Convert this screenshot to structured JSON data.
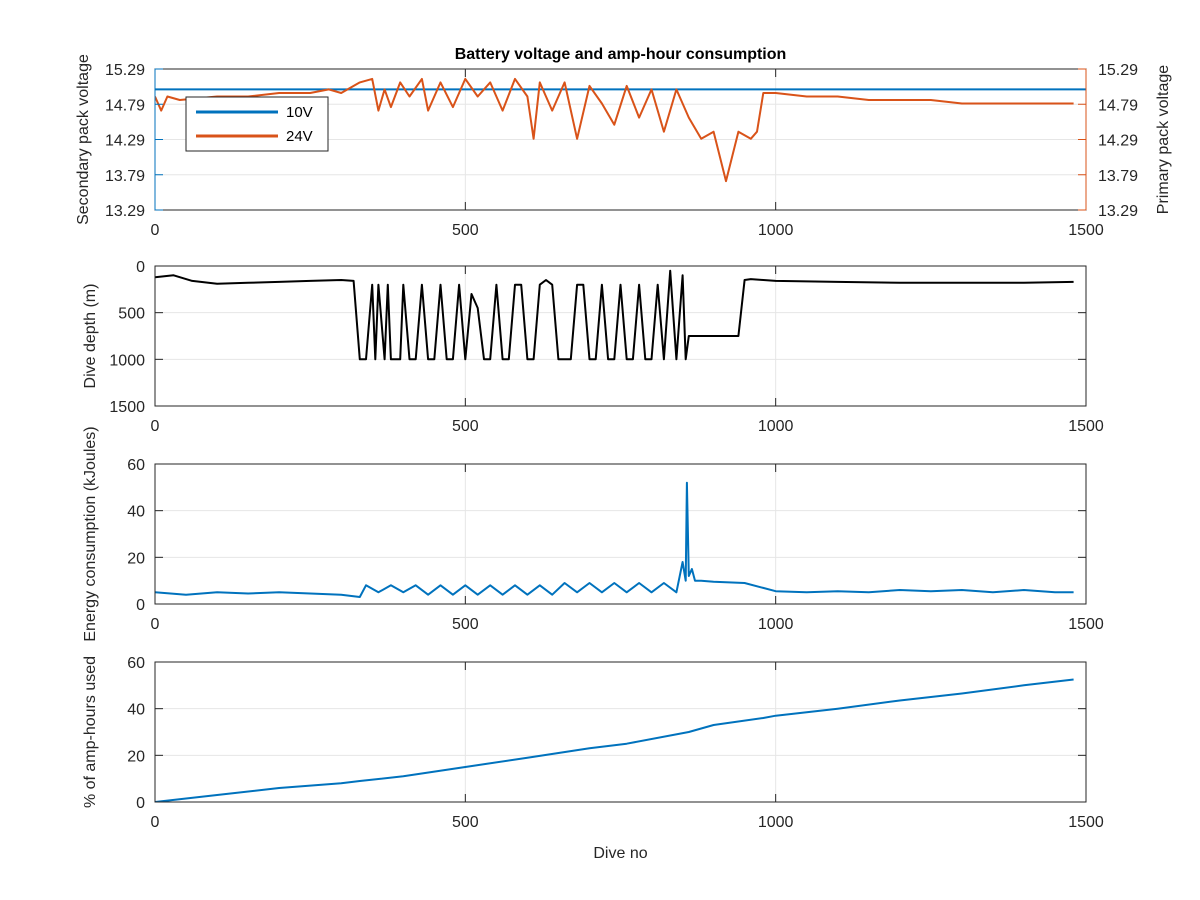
{
  "chart_data": [
    {
      "type": "line",
      "title": "Battery voltage and amp-hour consumption",
      "xlabel": "",
      "ylabel": "Secondary pack voltage",
      "ylabel_right": "Primary pack voltage",
      "xlim": [
        0,
        1500
      ],
      "ylim": [
        13.29,
        15.29
      ],
      "ylim_right": [
        13.29,
        15.29
      ],
      "xticks": [
        0,
        500,
        1000,
        1500
      ],
      "xtick_labels": [
        "0",
        "500",
        "1000",
        "1500"
      ],
      "yticks": [
        13.29,
        13.79,
        14.29,
        14.79,
        15.29
      ],
      "ytick_labels": [
        "13.29",
        "13.79",
        "14.29",
        "14.79",
        "15.29"
      ],
      "ytick_labels_right": [
        "13.29",
        "13.79",
        "14.29",
        "14.79",
        "15.29"
      ],
      "grid": true,
      "legend": "top-left",
      "left_color": "#0072bd",
      "right_color": "#d95319",
      "series": [
        {
          "name": "10V",
          "color": "#0072bd",
          "axis": "left",
          "x": [
            0,
            1500
          ],
          "y": [
            15.0,
            15.0
          ]
        },
        {
          "name": "24V",
          "color": "#d95319",
          "axis": "right",
          "x": [
            0,
            10,
            20,
            40,
            100,
            150,
            200,
            250,
            280,
            300,
            330,
            350,
            360,
            370,
            380,
            395,
            410,
            430,
            440,
            460,
            480,
            500,
            520,
            540,
            560,
            580,
            600,
            610,
            620,
            640,
            660,
            680,
            700,
            720,
            740,
            760,
            780,
            800,
            820,
            840,
            860,
            880,
            900,
            920,
            940,
            960,
            970,
            980,
            1000,
            1050,
            1100,
            1150,
            1200,
            1250,
            1300,
            1350,
            1400,
            1450,
            1480
          ],
          "y": [
            14.9,
            14.7,
            14.9,
            14.85,
            14.9,
            14.9,
            14.95,
            14.95,
            15.0,
            14.95,
            15.1,
            15.15,
            14.7,
            15.0,
            14.75,
            15.1,
            14.9,
            15.15,
            14.7,
            15.1,
            14.75,
            15.15,
            14.9,
            15.1,
            14.7,
            15.15,
            14.9,
            14.3,
            15.1,
            14.7,
            15.1,
            14.3,
            15.05,
            14.8,
            14.5,
            15.05,
            14.6,
            15.0,
            14.4,
            15.0,
            14.6,
            14.3,
            14.4,
            13.7,
            14.4,
            14.3,
            14.4,
            14.95,
            14.95,
            14.9,
            14.9,
            14.85,
            14.85,
            14.85,
            14.8,
            14.8,
            14.8,
            14.8,
            14.8
          ]
        }
      ]
    },
    {
      "type": "line",
      "xlabel": "",
      "ylabel": "Dive depth (m)",
      "xlim": [
        0,
        1500
      ],
      "ylim": [
        1500,
        0
      ],
      "y_reversed": true,
      "xticks": [
        0,
        500,
        1000,
        1500
      ],
      "xtick_labels": [
        "0",
        "500",
        "1000",
        "1500"
      ],
      "yticks": [
        0,
        500,
        1000,
        1500
      ],
      "ytick_labels": [
        "0",
        "500",
        "1000",
        "1500"
      ],
      "grid": true,
      "series": [
        {
          "color": "#000000",
          "x": [
            0,
            30,
            60,
            100,
            150,
            200,
            250,
            300,
            320,
            330,
            340,
            350,
            355,
            360,
            370,
            375,
            380,
            395,
            400,
            410,
            420,
            430,
            440,
            450,
            460,
            470,
            480,
            490,
            500,
            510,
            520,
            530,
            540,
            550,
            560,
            570,
            580,
            590,
            600,
            610,
            620,
            630,
            640,
            650,
            660,
            670,
            680,
            690,
            700,
            710,
            720,
            730,
            740,
            750,
            760,
            770,
            780,
            790,
            800,
            810,
            820,
            830,
            840,
            850,
            855,
            860,
            870,
            880,
            900,
            940,
            950,
            960,
            980,
            1000,
            1100,
            1200,
            1300,
            1400,
            1480
          ],
          "y": [
            120,
            100,
            160,
            190,
            180,
            170,
            160,
            150,
            160,
            1000,
            1000,
            200,
            1000,
            200,
            1000,
            200,
            1000,
            1000,
            200,
            1000,
            1000,
            200,
            1000,
            1000,
            200,
            1000,
            1000,
            200,
            1000,
            300,
            450,
            1000,
            1000,
            200,
            1000,
            1000,
            200,
            200,
            1000,
            1000,
            200,
            150,
            200,
            1000,
            1000,
            1000,
            200,
            200,
            1000,
            1000,
            200,
            1000,
            1000,
            200,
            1000,
            1000,
            200,
            1000,
            1000,
            200,
            1000,
            50,
            1000,
            100,
            1000,
            750,
            750,
            750,
            750,
            750,
            150,
            140,
            150,
            160,
            170,
            180,
            180,
            180,
            170
          ]
        }
      ]
    },
    {
      "type": "line",
      "xlabel": "",
      "ylabel": "Energy consumption (kJoules)",
      "xlim": [
        0,
        1500
      ],
      "ylim": [
        0,
        60
      ],
      "xticks": [
        0,
        500,
        1000,
        1500
      ],
      "xtick_labels": [
        "0",
        "500",
        "1000",
        "1500"
      ],
      "yticks": [
        0,
        20,
        40,
        60
      ],
      "ytick_labels": [
        "0",
        "20",
        "40",
        "60"
      ],
      "grid": true,
      "series": [
        {
          "color": "#0072bd",
          "x": [
            0,
            50,
            100,
            150,
            200,
            250,
            300,
            330,
            340,
            360,
            380,
            400,
            420,
            440,
            460,
            480,
            500,
            520,
            540,
            560,
            580,
            600,
            620,
            640,
            660,
            680,
            700,
            720,
            740,
            760,
            780,
            800,
            820,
            840,
            850,
            855,
            857,
            860,
            865,
            870,
            880,
            900,
            950,
            1000,
            1050,
            1100,
            1150,
            1200,
            1250,
            1300,
            1350,
            1400,
            1450,
            1480
          ],
          "y": [
            5,
            4,
            5,
            4.5,
            5,
            4.5,
            4,
            3,
            8,
            5,
            8,
            5,
            8,
            4,
            8,
            4,
            8,
            4,
            8,
            4,
            8,
            4,
            8,
            4,
            9,
            5,
            9,
            5,
            9,
            5,
            9,
            5,
            9,
            5,
            18,
            10,
            52,
            12,
            15,
            10,
            10,
            9.5,
            9,
            5.5,
            5,
            5.5,
            5,
            6,
            5.5,
            6,
            5,
            6,
            5,
            5
          ]
        }
      ]
    },
    {
      "type": "line",
      "xlabel": "Dive no",
      "ylabel": "% of amp-hours used",
      "xlim": [
        0,
        1500
      ],
      "ylim": [
        0,
        60
      ],
      "xticks": [
        0,
        500,
        1000,
        1500
      ],
      "xtick_labels": [
        "0",
        "500",
        "1000",
        "1500"
      ],
      "yticks": [
        0,
        20,
        40,
        60
      ],
      "ytick_labels": [
        "0",
        "20",
        "40",
        "60"
      ],
      "grid": true,
      "series": [
        {
          "color": "#0072bd",
          "x": [
            0,
            100,
            200,
            300,
            330,
            400,
            500,
            600,
            700,
            760,
            860,
            900,
            980,
            1000,
            1100,
            1200,
            1300,
            1400,
            1480
          ],
          "y": [
            0,
            3,
            6,
            8,
            9,
            11,
            15,
            19,
            23,
            25,
            30,
            33,
            36,
            37,
            40,
            43.5,
            46.5,
            50,
            52.5
          ]
        }
      ]
    }
  ]
}
